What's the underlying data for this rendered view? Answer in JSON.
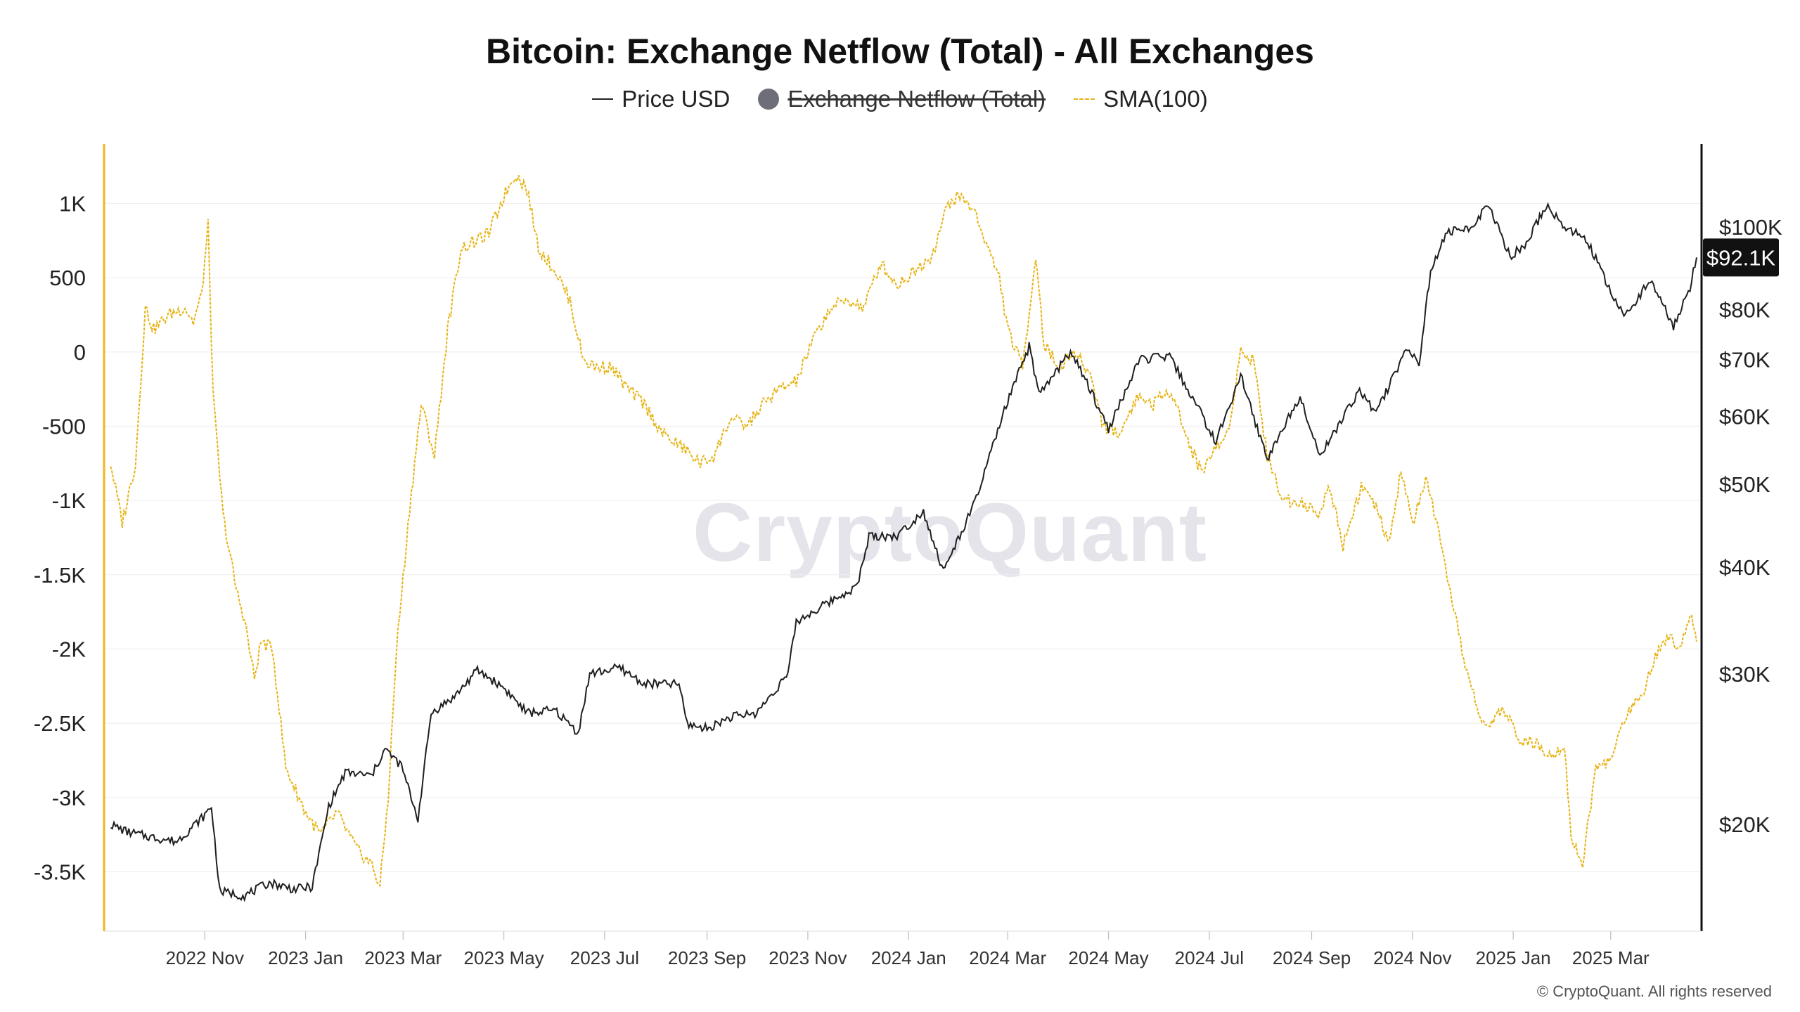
{
  "title": "Bitcoin: Exchange Netflow (Total) - All Exchanges",
  "legend": {
    "price": "Price USD",
    "netflow": "Exchange Netflow (Total)",
    "sma": "SMA(100)"
  },
  "watermark": "CryptoQuant",
  "copyright": "© CryptoQuant. All rights reserved",
  "price_badge": "$92.1K",
  "colors": {
    "price": "#1f1f1f",
    "sma": "#e6b416",
    "left_axis": "#f2b51c",
    "right_axis": "#111111",
    "legend_dot": "#6e6e78"
  },
  "chart_data": {
    "type": "line",
    "title": "Bitcoin: Exchange Netflow (Total) - All Exchanges",
    "grid": true,
    "legend_position": "top-center",
    "x_ticks": [
      {
        "date": "2022-11-01",
        "label": "2022 Nov"
      },
      {
        "date": "2023-01-01",
        "label": "2023 Jan"
      },
      {
        "date": "2023-03-01",
        "label": "2023 Mar"
      },
      {
        "date": "2023-05-01",
        "label": "2023 May"
      },
      {
        "date": "2023-07-01",
        "label": "2023 Jul"
      },
      {
        "date": "2023-09-01",
        "label": "2023 Sep"
      },
      {
        "date": "2023-11-01",
        "label": "2023 Nov"
      },
      {
        "date": "2024-01-01",
        "label": "2024 Jan"
      },
      {
        "date": "2024-03-01",
        "label": "2024 Mar"
      },
      {
        "date": "2024-05-01",
        "label": "2024 May"
      },
      {
        "date": "2024-07-01",
        "label": "2024 Jul"
      },
      {
        "date": "2024-09-01",
        "label": "2024 Sep"
      },
      {
        "date": "2024-11-01",
        "label": "2024 Nov"
      },
      {
        "date": "2025-01-01",
        "label": "2025 Jan"
      },
      {
        "date": "2025-03-01",
        "label": "2025 Mar"
      }
    ],
    "x_range": [
      "2022-09-01",
      "2025-04-25"
    ],
    "left_axis": {
      "ylim": [
        -3900,
        1400
      ],
      "ticks": [
        {
          "value": 1000,
          "label": "1K"
        },
        {
          "value": 500,
          "label": "500"
        },
        {
          "value": 0,
          "label": "0"
        },
        {
          "value": -500,
          "label": "-500"
        },
        {
          "value": -1000,
          "label": "-1K"
        },
        {
          "value": -1500,
          "label": "-1.5K"
        },
        {
          "value": -2000,
          "label": "-2K"
        },
        {
          "value": -2500,
          "label": "-2.5K"
        },
        {
          "value": -3000,
          "label": "-3K"
        },
        {
          "value": -3500,
          "label": "-3.5K"
        }
      ]
    },
    "right_axis": {
      "scale": "log",
      "ylim": [
        15000,
        125000
      ],
      "ticks": [
        {
          "value": 100000,
          "label": "$100K"
        },
        {
          "value": 80000,
          "label": "$80K"
        },
        {
          "value": 70000,
          "label": "$70K"
        },
        {
          "value": 60000,
          "label": "$60K"
        },
        {
          "value": 50000,
          "label": "$50K"
        },
        {
          "value": 40000,
          "label": "$40K"
        },
        {
          "value": 30000,
          "label": "$30K"
        },
        {
          "value": 20000,
          "label": "$20K"
        }
      ]
    },
    "series": [
      {
        "name": "Price USD",
        "axis": "right",
        "points": [
          [
            "2022-09-05",
            20000
          ],
          [
            "2022-09-15",
            19600
          ],
          [
            "2022-10-01",
            19300
          ],
          [
            "2022-10-15",
            19100
          ],
          [
            "2022-11-01",
            20500
          ],
          [
            "2022-11-05",
            21000
          ],
          [
            "2022-11-10",
            16700
          ],
          [
            "2022-11-25",
            16500
          ],
          [
            "2022-12-10",
            17100
          ],
          [
            "2022-12-25",
            16800
          ],
          [
            "2023-01-05",
            16900
          ],
          [
            "2023-01-15",
            21000
          ],
          [
            "2023-01-25",
            23000
          ],
          [
            "2023-02-10",
            22800
          ],
          [
            "2023-02-18",
            24500
          ],
          [
            "2023-02-28",
            23400
          ],
          [
            "2023-03-10",
            20300
          ],
          [
            "2023-03-18",
            27000
          ],
          [
            "2023-04-01",
            28200
          ],
          [
            "2023-04-15",
            30300
          ],
          [
            "2023-05-01",
            28900
          ],
          [
            "2023-05-15",
            27000
          ],
          [
            "2023-06-01",
            27200
          ],
          [
            "2023-06-15",
            25600
          ],
          [
            "2023-06-22",
            30000
          ],
          [
            "2023-07-10",
            30500
          ],
          [
            "2023-07-25",
            29200
          ],
          [
            "2023-08-15",
            29200
          ],
          [
            "2023-08-20",
            26200
          ],
          [
            "2023-09-01",
            25900
          ],
          [
            "2023-09-15",
            26700
          ],
          [
            "2023-10-01",
            27000
          ],
          [
            "2023-10-20",
            30000
          ],
          [
            "2023-10-25",
            34500
          ],
          [
            "2023-11-15",
            36500
          ],
          [
            "2023-12-01",
            38000
          ],
          [
            "2023-12-08",
            43500
          ],
          [
            "2023-12-25",
            43500
          ],
          [
            "2024-01-10",
            46500
          ],
          [
            "2024-01-22",
            39500
          ],
          [
            "2024-02-10",
            47500
          ],
          [
            "2024-02-28",
            61000
          ],
          [
            "2024-03-14",
            72500
          ],
          [
            "2024-03-20",
            63500
          ],
          [
            "2024-04-08",
            71500
          ],
          [
            "2024-04-20",
            64500
          ],
          [
            "2024-05-01",
            58000
          ],
          [
            "2024-05-20",
            70000
          ],
          [
            "2024-06-07",
            70500
          ],
          [
            "2024-06-25",
            61000
          ],
          [
            "2024-07-05",
            56000
          ],
          [
            "2024-07-20",
            67000
          ],
          [
            "2024-08-05",
            53500
          ],
          [
            "2024-08-25",
            63500
          ],
          [
            "2024-09-06",
            53900
          ],
          [
            "2024-09-30",
            64500
          ],
          [
            "2024-10-10",
            60500
          ],
          [
            "2024-10-29",
            72500
          ],
          [
            "2024-11-05",
            69000
          ],
          [
            "2024-11-12",
            89000
          ],
          [
            "2024-11-22",
            98500
          ],
          [
            "2024-12-05",
            99500
          ],
          [
            "2024-12-17",
            106000
          ],
          [
            "2024-12-30",
            92500
          ],
          [
            "2025-01-08",
            95000
          ],
          [
            "2025-01-21",
            106000
          ],
          [
            "2025-02-01",
            100000
          ],
          [
            "2025-02-15",
            96500
          ],
          [
            "2025-02-28",
            84500
          ],
          [
            "2025-03-10",
            78500
          ],
          [
            "2025-03-25",
            87000
          ],
          [
            "2025-04-08",
            76500
          ],
          [
            "2025-04-18",
            85000
          ],
          [
            "2025-04-22",
            92100
          ]
        ]
      },
      {
        "name": "SMA(100)",
        "axis": "left",
        "points": [
          [
            "2022-09-05",
            -750
          ],
          [
            "2022-09-12",
            -1150
          ],
          [
            "2022-09-20",
            -750
          ],
          [
            "2022-09-26",
            300
          ],
          [
            "2022-10-01",
            150
          ],
          [
            "2022-10-10",
            250
          ],
          [
            "2022-10-20",
            300
          ],
          [
            "2022-10-25",
            200
          ],
          [
            "2022-10-30",
            380
          ],
          [
            "2022-11-03",
            850
          ],
          [
            "2022-11-06",
            -300
          ],
          [
            "2022-11-12",
            -1100
          ],
          [
            "2022-11-20",
            -1600
          ],
          [
            "2022-11-25",
            -1800
          ],
          [
            "2022-12-01",
            -2200
          ],
          [
            "2022-12-05",
            -1950
          ],
          [
            "2022-12-12",
            -2000
          ],
          [
            "2022-12-20",
            -2800
          ],
          [
            "2023-01-01",
            -3100
          ],
          [
            "2023-01-10",
            -3250
          ],
          [
            "2023-01-20",
            -3100
          ],
          [
            "2023-02-01",
            -3350
          ],
          [
            "2023-02-10",
            -3450
          ],
          [
            "2023-02-15",
            -3600
          ],
          [
            "2023-02-20",
            -3000
          ],
          [
            "2023-02-25",
            -2000
          ],
          [
            "2023-03-05",
            -1050
          ],
          [
            "2023-03-12",
            -350
          ],
          [
            "2023-03-20",
            -700
          ],
          [
            "2023-03-28",
            150
          ],
          [
            "2023-04-05",
            700
          ],
          [
            "2023-04-15",
            750
          ],
          [
            "2023-04-22",
            800
          ],
          [
            "2023-05-01",
            1050
          ],
          [
            "2023-05-08",
            1200
          ],
          [
            "2023-05-15",
            1100
          ],
          [
            "2023-05-22",
            700
          ],
          [
            "2023-06-01",
            550
          ],
          [
            "2023-06-10",
            350
          ],
          [
            "2023-06-18",
            -50
          ],
          [
            "2023-06-25",
            -100
          ],
          [
            "2023-07-05",
            -100
          ],
          [
            "2023-07-15",
            -250
          ],
          [
            "2023-07-25",
            -350
          ],
          [
            "2023-08-05",
            -550
          ],
          [
            "2023-08-18",
            -650
          ],
          [
            "2023-08-28",
            -750
          ],
          [
            "2023-09-05",
            -700
          ],
          [
            "2023-09-15",
            -450
          ],
          [
            "2023-09-25",
            -500
          ],
          [
            "2023-10-05",
            -350
          ],
          [
            "2023-10-15",
            -250
          ],
          [
            "2023-10-25",
            -200
          ],
          [
            "2023-11-05",
            100
          ],
          [
            "2023-11-15",
            300
          ],
          [
            "2023-11-25",
            350
          ],
          [
            "2023-12-05",
            300
          ],
          [
            "2023-12-15",
            600
          ],
          [
            "2023-12-25",
            450
          ],
          [
            "2024-01-05",
            550
          ],
          [
            "2024-01-15",
            650
          ],
          [
            "2024-01-25",
            1000
          ],
          [
            "2024-02-01",
            1050
          ],
          [
            "2024-02-10",
            950
          ],
          [
            "2024-02-18",
            700
          ],
          [
            "2024-02-25",
            500
          ],
          [
            "2024-03-01",
            150
          ],
          [
            "2024-03-10",
            -100
          ],
          [
            "2024-03-18",
            650
          ],
          [
            "2024-03-23",
            50
          ],
          [
            "2024-04-01",
            -100
          ],
          [
            "2024-04-10",
            0
          ],
          [
            "2024-04-20",
            -150
          ],
          [
            "2024-04-28",
            -500
          ],
          [
            "2024-05-08",
            -550
          ],
          [
            "2024-05-18",
            -300
          ],
          [
            "2024-05-28",
            -350
          ],
          [
            "2024-06-08",
            -250
          ],
          [
            "2024-06-18",
            -600
          ],
          [
            "2024-06-26",
            -800
          ],
          [
            "2024-07-05",
            -650
          ],
          [
            "2024-07-12",
            -550
          ],
          [
            "2024-07-20",
            0
          ],
          [
            "2024-07-28",
            -50
          ],
          [
            "2024-08-05",
            -700
          ],
          [
            "2024-08-15",
            -1000
          ],
          [
            "2024-08-25",
            -1000
          ],
          [
            "2024-09-05",
            -1100
          ],
          [
            "2024-09-12",
            -900
          ],
          [
            "2024-09-20",
            -1300
          ],
          [
            "2024-10-01",
            -900
          ],
          [
            "2024-10-10",
            -1050
          ],
          [
            "2024-10-18",
            -1300
          ],
          [
            "2024-10-25",
            -800
          ],
          [
            "2024-11-01",
            -1150
          ],
          [
            "2024-11-10",
            -850
          ],
          [
            "2024-11-18",
            -1300
          ],
          [
            "2024-11-25",
            -1700
          ],
          [
            "2024-12-05",
            -2200
          ],
          [
            "2024-12-15",
            -2550
          ],
          [
            "2024-12-25",
            -2400
          ],
          [
            "2025-01-05",
            -2600
          ],
          [
            "2025-01-15",
            -2650
          ],
          [
            "2025-01-25",
            -2700
          ],
          [
            "2025-02-01",
            -2650
          ],
          [
            "2025-02-05",
            -3250
          ],
          [
            "2025-02-12",
            -3450
          ],
          [
            "2025-02-20",
            -2800
          ],
          [
            "2025-03-01",
            -2750
          ],
          [
            "2025-03-10",
            -2450
          ],
          [
            "2025-03-20",
            -2300
          ],
          [
            "2025-03-28",
            -2050
          ],
          [
            "2025-04-05",
            -1900
          ],
          [
            "2025-04-12",
            -2000
          ],
          [
            "2025-04-18",
            -1750
          ],
          [
            "2025-04-22",
            -1950
          ]
        ]
      }
    ]
  }
}
